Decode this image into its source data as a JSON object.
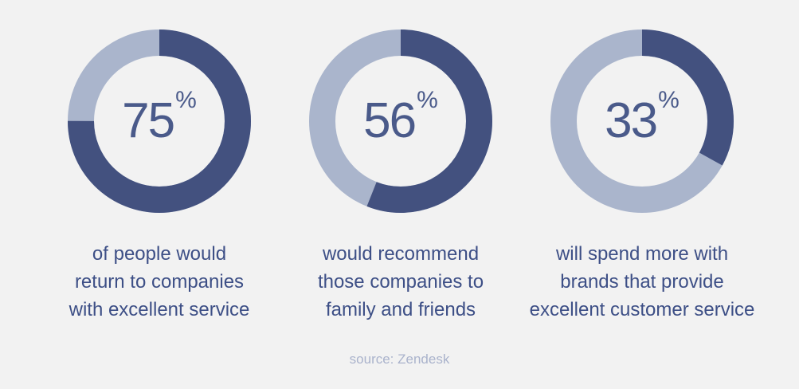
{
  "colors": {
    "primary": "#43517f",
    "secondary": "#aab5cc",
    "text": "#3d4f86",
    "percent_text": "#4a5a8a",
    "source_text": "#aab3cc",
    "background": "#f2f2f2"
  },
  "chart_data": [
    {
      "type": "pie",
      "value": 75,
      "display_number": "75",
      "percent_sign": "%",
      "caption_lines": [
        "of people would",
        "return to companies",
        "with excellent service"
      ],
      "series": [
        {
          "label": "of people would return to companies with excellent service",
          "value": 75,
          "color": "#43517f"
        },
        {
          "label": "",
          "value": 25,
          "color": "#aab5cc"
        }
      ]
    },
    {
      "type": "pie",
      "value": 56,
      "display_number": "56",
      "percent_sign": "%",
      "caption_lines": [
        "would recommend",
        "those companies to",
        "family and friends"
      ],
      "series": [
        {
          "label": "would recommend those companies to family and friends",
          "value": 56,
          "color": "#43517f"
        },
        {
          "label": "",
          "value": 44,
          "color": "#aab5cc"
        }
      ]
    },
    {
      "type": "pie",
      "value": 33,
      "display_number": "33",
      "percent_sign": "%",
      "caption_lines": [
        "will spend more with",
        "brands that provide",
        "excellent customer service"
      ],
      "series": [
        {
          "label": "will spend more with brands that provide excellent customer service",
          "value": 33,
          "color": "#43517f"
        },
        {
          "label": "",
          "value": 67,
          "color": "#aab5cc"
        }
      ]
    }
  ],
  "source": "source: Zendesk"
}
